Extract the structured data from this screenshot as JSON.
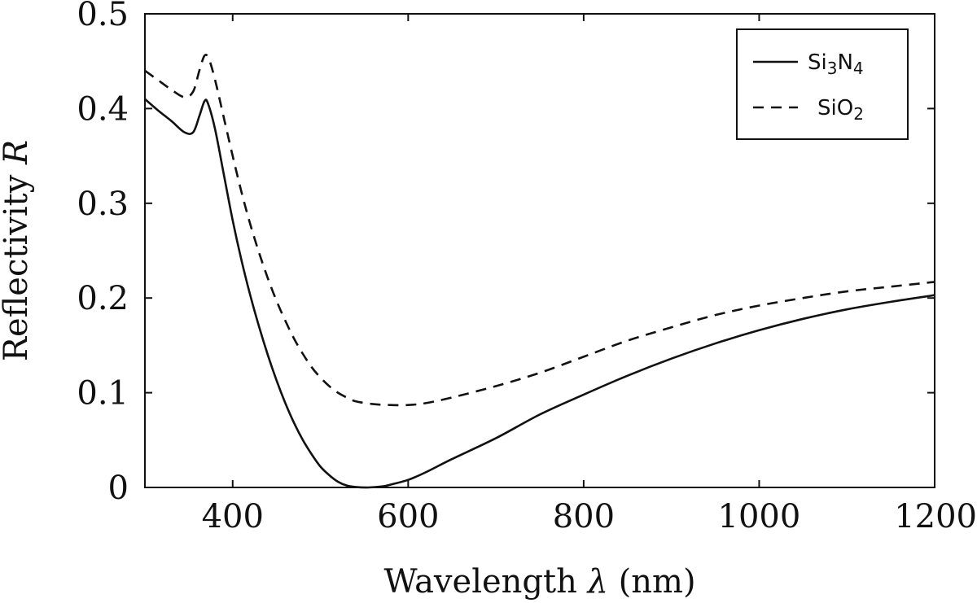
{
  "chart_data": {
    "type": "line",
    "xlabel": {
      "text": "Wavelength ",
      "symbol": "λ",
      "unit": " (nm)"
    },
    "ylabel": {
      "text": "Reflectivity ",
      "symbol": "R"
    },
    "xlim": [
      300,
      1200
    ],
    "ylim": [
      0,
      0.5
    ],
    "x_ticks": [
      400,
      600,
      800,
      1000,
      1200
    ],
    "x_tick_labels": [
      "400",
      "600",
      "800",
      "1000",
      "1200"
    ],
    "y_ticks": [
      0,
      0.1,
      0.2,
      0.3,
      0.4,
      0.5
    ],
    "y_tick_labels": [
      "0",
      "0.1",
      "0.2",
      "0.3",
      "0.4",
      "0.5"
    ],
    "grid": false,
    "legend": {
      "placement": "top-right"
    },
    "series": [
      {
        "name": "Si3N4",
        "name_parts": {
          "a": "Si",
          "a_sub": "3",
          "b": "N",
          "b_sub": "4"
        },
        "style": "solid",
        "color": "#111111",
        "points": [
          [
            300,
            0.41
          ],
          [
            315,
            0.398
          ],
          [
            330,
            0.387
          ],
          [
            345,
            0.375
          ],
          [
            355,
            0.375
          ],
          [
            362,
            0.392
          ],
          [
            368,
            0.408
          ],
          [
            372,
            0.405
          ],
          [
            380,
            0.378
          ],
          [
            390,
            0.33
          ],
          [
            400,
            0.282
          ],
          [
            410,
            0.24
          ],
          [
            420,
            0.203
          ],
          [
            430,
            0.17
          ],
          [
            440,
            0.14
          ],
          [
            450,
            0.113
          ],
          [
            460,
            0.089
          ],
          [
            470,
            0.068
          ],
          [
            480,
            0.05
          ],
          [
            490,
            0.035
          ],
          [
            500,
            0.022
          ],
          [
            510,
            0.013
          ],
          [
            520,
            0.006
          ],
          [
            530,
            0.002
          ],
          [
            540,
            0.0005
          ],
          [
            555,
            0.0
          ],
          [
            570,
            0.001
          ],
          [
            580,
            0.003
          ],
          [
            600,
            0.008
          ],
          [
            620,
            0.016
          ],
          [
            650,
            0.03
          ],
          [
            700,
            0.052
          ],
          [
            750,
            0.077
          ],
          [
            800,
            0.098
          ],
          [
            850,
            0.118
          ],
          [
            900,
            0.136
          ],
          [
            950,
            0.152
          ],
          [
            1000,
            0.166
          ],
          [
            1050,
            0.178
          ],
          [
            1100,
            0.188
          ],
          [
            1150,
            0.196
          ],
          [
            1200,
            0.203
          ]
        ]
      },
      {
        "name": "SiO2",
        "name_parts": {
          "a": "SiO",
          "a_sub": "2"
        },
        "style": "dashed",
        "color": "#111111",
        "points": [
          [
            300,
            0.44
          ],
          [
            315,
            0.43
          ],
          [
            330,
            0.42
          ],
          [
            345,
            0.412
          ],
          [
            355,
            0.418
          ],
          [
            362,
            0.44
          ],
          [
            368,
            0.456
          ],
          [
            373,
            0.452
          ],
          [
            380,
            0.43
          ],
          [
            390,
            0.39
          ],
          [
            400,
            0.35
          ],
          [
            410,
            0.312
          ],
          [
            420,
            0.278
          ],
          [
            430,
            0.248
          ],
          [
            440,
            0.221
          ],
          [
            450,
            0.197
          ],
          [
            460,
            0.176
          ],
          [
            470,
            0.157
          ],
          [
            480,
            0.141
          ],
          [
            490,
            0.127
          ],
          [
            500,
            0.116
          ],
          [
            510,
            0.107
          ],
          [
            520,
            0.1
          ],
          [
            530,
            0.095
          ],
          [
            540,
            0.091
          ],
          [
            560,
            0.088
          ],
          [
            580,
            0.087
          ],
          [
            600,
            0.087
          ],
          [
            620,
            0.089
          ],
          [
            650,
            0.095
          ],
          [
            700,
            0.107
          ],
          [
            750,
            0.121
          ],
          [
            800,
            0.138
          ],
          [
            850,
            0.155
          ],
          [
            900,
            0.169
          ],
          [
            950,
            0.182
          ],
          [
            1000,
            0.192
          ],
          [
            1050,
            0.2
          ],
          [
            1100,
            0.207
          ],
          [
            1150,
            0.212
          ],
          [
            1200,
            0.217
          ]
        ]
      }
    ]
  }
}
